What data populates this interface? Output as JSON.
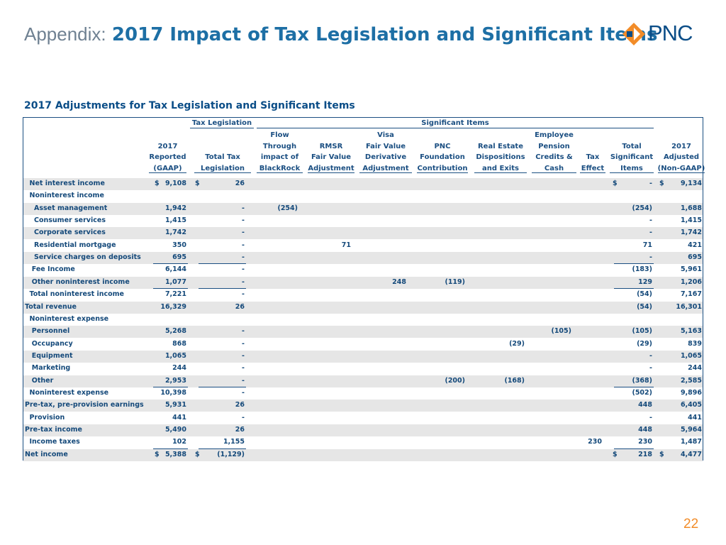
{
  "header": {
    "prefix": "Appendix:",
    "title": "2017 Impact of Tax Legislation and Significant Items",
    "logo_text": "PNC",
    "logo_color": "#f28c28"
  },
  "section_title": "2017 Adjustments for Tax Legislation and Significant Items",
  "groups": {
    "tax": "Tax Legislation",
    "significant": "Significant Items"
  },
  "columns": [
    {
      "lines": [
        "2017",
        "Reported",
        "(GAAP)"
      ]
    },
    {
      "lines": [
        "Total Tax",
        "Legislation"
      ]
    },
    {
      "lines": [
        "Flow",
        "Through",
        "impact of",
        "BlackRock"
      ]
    },
    {
      "lines": [
        "RMSR",
        "Fair Value",
        "Adjustment"
      ]
    },
    {
      "lines": [
        "Visa",
        "Fair Value",
        "Derivative",
        "Adjustment"
      ]
    },
    {
      "lines": [
        "PNC",
        "Foundation",
        "Contribution"
      ]
    },
    {
      "lines": [
        "Real Estate",
        "Dispositions",
        "and Exits"
      ]
    },
    {
      "lines": [
        "Employee",
        "Pension",
        "Credits &",
        "Cash"
      ]
    },
    {
      "lines": [
        "Tax",
        "Effect"
      ]
    },
    {
      "lines": [
        "Total",
        "Significant",
        "Items"
      ]
    },
    {
      "lines": [
        "2017",
        "Adjusted",
        "(Non-GAAP)"
      ]
    }
  ],
  "rows": [
    {
      "label": "Net interest income",
      "indent": 1,
      "shade": true,
      "cells": [
        "9,108",
        "26",
        "",
        "",
        "",
        "",
        "",
        "",
        "",
        "-",
        "9,134"
      ],
      "dollar": [
        0,
        1,
        9,
        10
      ]
    },
    {
      "label": "Noninterest income",
      "indent": 1,
      "shade": false,
      "cells": [
        "",
        "",
        "",
        "",
        "",
        "",
        "",
        "",
        "",
        "",
        ""
      ]
    },
    {
      "label": "Asset management",
      "indent": 2,
      "shade": true,
      "cells": [
        "1,942",
        "-",
        "(254)",
        "",
        "",
        "",
        "",
        "",
        "",
        "(254)",
        "1,688"
      ]
    },
    {
      "label": "Consumer services",
      "indent": 2,
      "shade": false,
      "cells": [
        "1,415",
        "-",
        "",
        "",
        "",
        "",
        "",
        "",
        "",
        "-",
        "1,415"
      ]
    },
    {
      "label": "Corporate services",
      "indent": 2,
      "shade": true,
      "cells": [
        "1,742",
        "-",
        "",
        "",
        "",
        "",
        "",
        "",
        "",
        "-",
        "1,742"
      ]
    },
    {
      "label": "Residential mortgage",
      "indent": 2,
      "shade": false,
      "cells": [
        "350",
        "-",
        "",
        "71",
        "",
        "",
        "",
        "",
        "",
        "71",
        "421"
      ]
    },
    {
      "label": "Service charges on deposits",
      "indent": 2,
      "shade": true,
      "cells": [
        "695",
        "-",
        "",
        "",
        "",
        "",
        "",
        "",
        "",
        "-",
        "695"
      ],
      "underline": true
    },
    {
      "label": "Fee Income",
      "indent": 1.5,
      "shade": false,
      "cells": [
        "6,144",
        "-",
        "",
        "",
        "",
        "",
        "",
        "",
        "",
        "(183)",
        "5,961"
      ]
    },
    {
      "label": "Other noninterest income",
      "indent": 1.5,
      "shade": true,
      "cells": [
        "1,077",
        "-",
        "",
        "",
        "248",
        "(119)",
        "",
        "",
        "",
        "129",
        "1,206"
      ],
      "underline": true
    },
    {
      "label": "Total noninterest income",
      "indent": 1,
      "shade": false,
      "cells": [
        "7,221",
        "-",
        "",
        "",
        "",
        "",
        "",
        "",
        "",
        "(54)",
        "7,167"
      ]
    },
    {
      "label": "Total revenue",
      "indent": 0,
      "shade": true,
      "cells": [
        "16,329",
        "26",
        "",
        "",
        "",
        "",
        "",
        "",
        "",
        "(54)",
        "16,301"
      ]
    },
    {
      "label": "Noninterest expense",
      "indent": 1,
      "shade": false,
      "cells": [
        "",
        "",
        "",
        "",
        "",
        "",
        "",
        "",
        "",
        "",
        ""
      ]
    },
    {
      "label": "Personnel",
      "indent": 1.5,
      "shade": true,
      "cells": [
        "5,268",
        "-",
        "",
        "",
        "",
        "",
        "",
        "(105)",
        "",
        "(105)",
        "5,163"
      ]
    },
    {
      "label": "Occupancy",
      "indent": 1.5,
      "shade": false,
      "cells": [
        "868",
        "-",
        "",
        "",
        "",
        "",
        "(29)",
        "",
        "",
        "(29)",
        "839"
      ]
    },
    {
      "label": "Equipment",
      "indent": 1.5,
      "shade": true,
      "cells": [
        "1,065",
        "-",
        "",
        "",
        "",
        "",
        "",
        "",
        "",
        "-",
        "1,065"
      ]
    },
    {
      "label": "Marketing",
      "indent": 1.5,
      "shade": false,
      "cells": [
        "244",
        "-",
        "",
        "",
        "",
        "",
        "",
        "",
        "",
        "-",
        "244"
      ]
    },
    {
      "label": "Other",
      "indent": 1.5,
      "shade": true,
      "cells": [
        "2,953",
        "-",
        "",
        "",
        "",
        "(200)",
        "(168)",
        "",
        "",
        "(368)",
        "2,585"
      ],
      "underline": true
    },
    {
      "label": "Noninterest expense",
      "indent": 1,
      "shade": false,
      "cells": [
        "10,398",
        "-",
        "",
        "",
        "",
        "",
        "",
        "",
        "",
        "(502)",
        "9,896"
      ]
    },
    {
      "label": "Pre-tax, pre-provision earnings",
      "indent": 0,
      "shade": true,
      "cells": [
        "5,931",
        "26",
        "",
        "",
        "",
        "",
        "",
        "",
        "",
        "448",
        "6,405"
      ]
    },
    {
      "label": "Provision",
      "indent": 1,
      "shade": false,
      "cells": [
        "441",
        "-",
        "",
        "",
        "",
        "",
        "",
        "",
        "",
        "-",
        "441"
      ]
    },
    {
      "label": "Pre-tax income",
      "indent": 0,
      "shade": true,
      "cells": [
        "5,490",
        "26",
        "",
        "",
        "",
        "",
        "",
        "",
        "",
        "448",
        "5,964"
      ]
    },
    {
      "label": "Income taxes",
      "indent": 1,
      "shade": false,
      "cells": [
        "102",
        "1,155",
        "",
        "",
        "",
        "",
        "",
        "",
        "230",
        "230",
        "1,487"
      ],
      "underline": true
    },
    {
      "label": "Net income",
      "indent": 0,
      "shade": true,
      "cells": [
        "5,388",
        "(1,129)",
        "",
        "",
        "",
        "",
        "",
        "",
        "",
        "218",
        "4,477"
      ],
      "dollar": [
        0,
        1,
        9,
        10
      ]
    }
  ],
  "page_number": "22"
}
